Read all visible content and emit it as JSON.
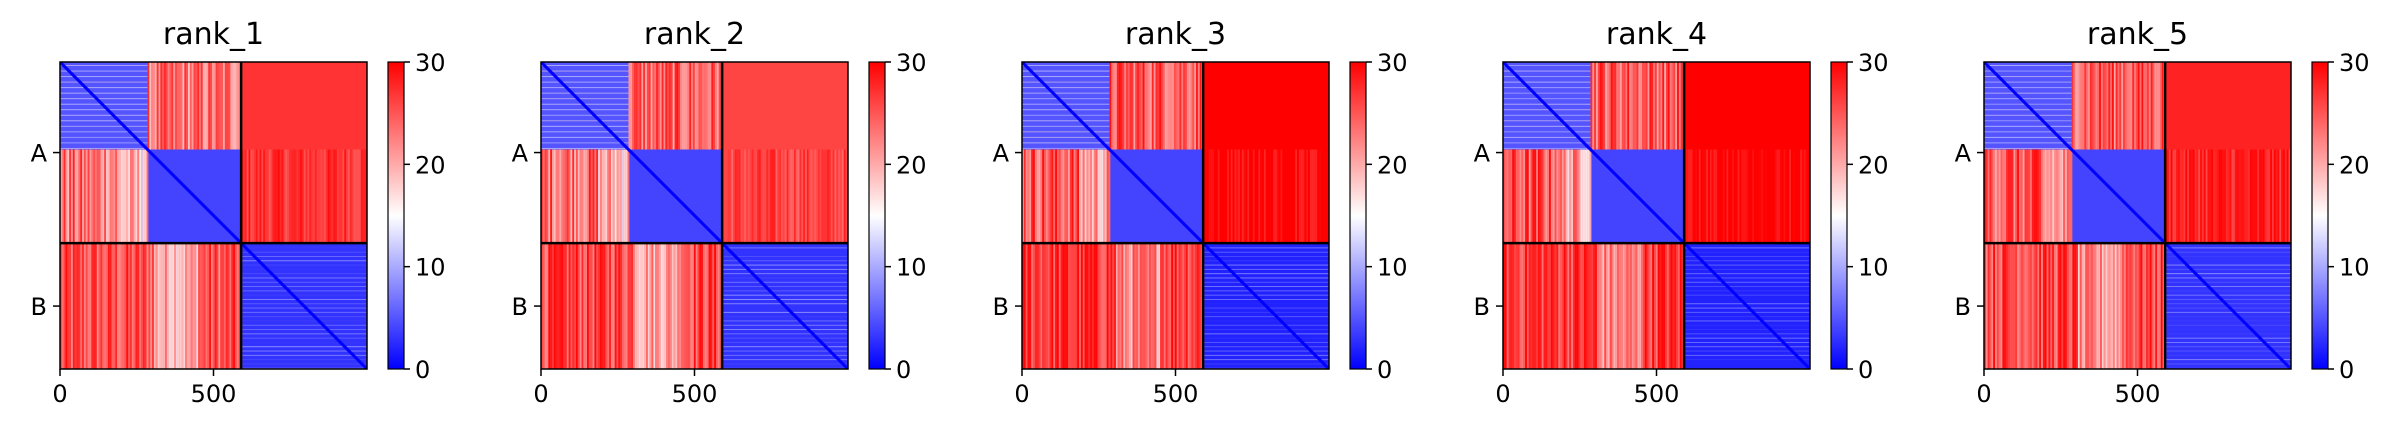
{
  "chart_data": [
    {
      "type": "heatmap",
      "title": "rank_1",
      "x_ticks": [
        0,
        500
      ],
      "y_labels": [
        "A",
        "B"
      ],
      "colorbar": {
        "ticks": [
          0,
          10,
          20,
          30
        ],
        "range": [
          0,
          30
        ],
        "cmap": "bwr"
      },
      "matrix_size": 1000,
      "segment_boundary": 590,
      "subdomain_boundary": 285,
      "block_means": {
        "a1a1": 5,
        "a2a2": 4,
        "a1a2": 23,
        "aa_b": 27,
        "ba": 25,
        "bb": 3
      }
    },
    {
      "type": "heatmap",
      "title": "rank_2",
      "x_ticks": [
        0,
        500
      ],
      "y_labels": [
        "A",
        "B"
      ],
      "colorbar": {
        "ticks": [
          0,
          10,
          20,
          30
        ],
        "range": [
          0,
          30
        ],
        "cmap": "bwr"
      },
      "matrix_size": 1000,
      "segment_boundary": 590,
      "subdomain_boundary": 285,
      "block_means": {
        "a1a1": 5,
        "a2a2": 4,
        "a1a2": 24,
        "aa_b": 26,
        "ba": 26,
        "bb": 3
      }
    },
    {
      "type": "heatmap",
      "title": "rank_3",
      "x_ticks": [
        0,
        500
      ],
      "y_labels": [
        "A",
        "B"
      ],
      "colorbar": {
        "ticks": [
          0,
          10,
          20,
          30
        ],
        "range": [
          0,
          30
        ],
        "cmap": "bwr"
      },
      "matrix_size": 1000,
      "segment_boundary": 590,
      "subdomain_boundary": 285,
      "block_means": {
        "a1a1": 5,
        "a2a2": 4,
        "a1a2": 25,
        "aa_b": 30,
        "ba": 27,
        "bb": 2
      }
    },
    {
      "type": "heatmap",
      "title": "rank_4",
      "x_ticks": [
        0,
        500
      ],
      "y_labels": [
        "A",
        "B"
      ],
      "colorbar": {
        "ticks": [
          0,
          10,
          20,
          30
        ],
        "range": [
          0,
          30
        ],
        "cmap": "bwr"
      },
      "matrix_size": 1000,
      "segment_boundary": 590,
      "subdomain_boundary": 285,
      "block_means": {
        "a1a1": 5,
        "a2a2": 4,
        "a1a2": 25,
        "aa_b": 30,
        "ba": 27,
        "bb": 2
      }
    },
    {
      "type": "heatmap",
      "title": "rank_5",
      "x_ticks": [
        0,
        500
      ],
      "y_labels": [
        "A",
        "B"
      ],
      "colorbar": {
        "ticks": [
          0,
          10,
          20,
          30
        ],
        "range": [
          0,
          30
        ],
        "cmap": "bwr"
      },
      "matrix_size": 1000,
      "segment_boundary": 590,
      "subdomain_boundary": 285,
      "block_means": {
        "a1a1": 5,
        "a2a2": 4,
        "a1a2": 25,
        "aa_b": 28,
        "ba": 26,
        "bb": 3
      }
    }
  ]
}
